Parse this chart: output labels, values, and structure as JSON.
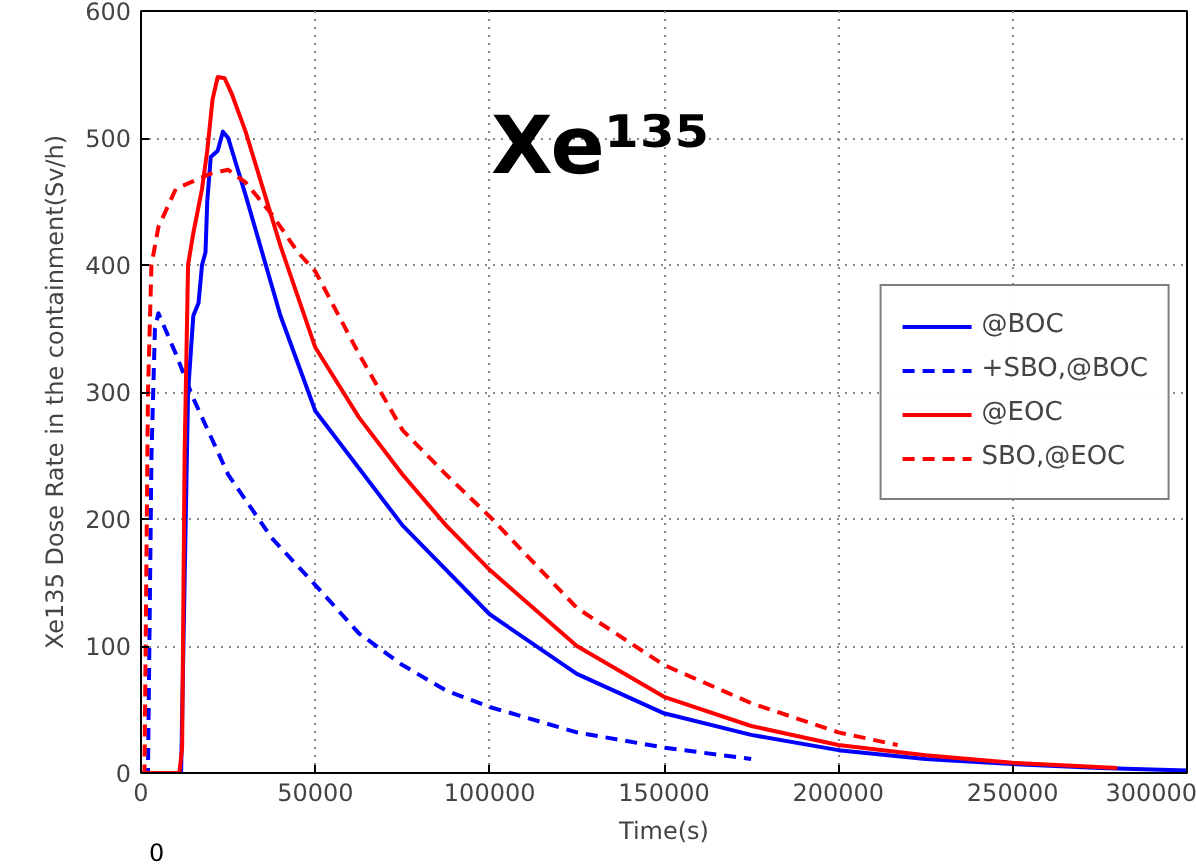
{
  "chart_data": {
    "type": "line",
    "xlabel": "Time(s)",
    "ylabel": "Xe135 Dose Rate in the containment(Sv/h)",
    "annotations": [
      "Xe¹³⁵",
      "0"
    ],
    "xlim": [
      0,
      300000
    ],
    "ylim": [
      0,
      600
    ],
    "xticks": [
      0,
      50000,
      100000,
      150000,
      200000,
      250000,
      300000
    ],
    "yticks": [
      0,
      100,
      200,
      300,
      400,
      500,
      600
    ],
    "grid": true,
    "legend": "right",
    "marker": "none",
    "series": [
      {
        "name": "@BOC",
        "color": "#0000ff",
        "line_style": "solid",
        "x": [
          0,
          11500,
          12500,
          13500,
          15000,
          16500,
          17500,
          18500,
          19000,
          20000,
          22000,
          23500,
          25000,
          30000,
          40000,
          50000,
          75000,
          100000,
          125000,
          150000,
          175000,
          200000,
          225000,
          250000,
          275000,
          300000
        ],
        "values": [
          0,
          0,
          150,
          300,
          360,
          370,
          400,
          410,
          450,
          485,
          490,
          505,
          500,
          455,
          360,
          285,
          195,
          125,
          78,
          47,
          30,
          18,
          11,
          7,
          4,
          2
        ]
      },
      {
        "name": "+SBO,@BOC",
        "color": "#0000ff",
        "line_style": "dashed",
        "x": [
          0,
          2000,
          3000,
          4000,
          5000,
          10000,
          15000,
          25000,
          37500,
          50000,
          62500,
          75000,
          87500,
          100000,
          125000,
          150000,
          175000
        ],
        "values": [
          0,
          0,
          250,
          350,
          362,
          330,
          295,
          235,
          185,
          148,
          110,
          85,
          65,
          52,
          32,
          20,
          11
        ]
      },
      {
        "name": "@EOC",
        "color": "#ff0000",
        "line_style": "solid",
        "x": [
          0,
          11000,
          11800,
          12500,
          13500,
          15000,
          17500,
          19000,
          20500,
          22000,
          24000,
          26000,
          30000,
          40000,
          50000,
          62500,
          75000,
          87500,
          100000,
          125000,
          150000,
          175000,
          200000,
          225000,
          250000,
          280000
        ],
        "values": [
          0,
          0,
          20,
          250,
          400,
          425,
          460,
          490,
          530,
          548,
          547,
          535,
          505,
          415,
          335,
          280,
          235,
          195,
          160,
          100,
          60,
          37,
          22,
          14,
          8,
          4
        ]
      },
      {
        "name": "SBO,@EOC",
        "color": "#ff0000",
        "line_style": "dashed",
        "x": [
          0,
          1000,
          2000,
          3000,
          5000,
          10000,
          20000,
          25000,
          30000,
          37500,
          45000,
          50000,
          62500,
          75000,
          87500,
          100000,
          125000,
          150000,
          175000,
          200000,
          217000
        ],
        "values": [
          0,
          0,
          300,
          400,
          430,
          460,
          472,
          475,
          465,
          440,
          410,
          395,
          330,
          270,
          235,
          202,
          130,
          85,
          55,
          32,
          22
        ]
      }
    ]
  }
}
